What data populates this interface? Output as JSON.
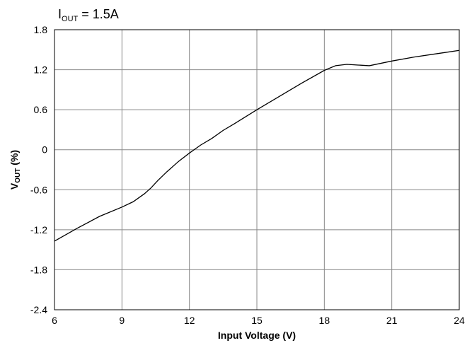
{
  "chart_data": {
    "type": "line",
    "annotation": {
      "main": "I",
      "sub": "OUT",
      "rest": " = 1.5A"
    },
    "xlabel": "Input Voltage (V)",
    "ylabel": {
      "main": "V",
      "sub": "OUT",
      "rest": " (%)"
    },
    "xlim": [
      6,
      24
    ],
    "ylim": [
      -2.4,
      1.8
    ],
    "x_ticks": [
      6,
      9,
      12,
      15,
      18,
      21,
      24
    ],
    "x_tick_labels": [
      "6",
      "9",
      "12",
      "15",
      "18",
      "21",
      "24"
    ],
    "y_ticks": [
      -2.4,
      -1.8,
      -1.2,
      -0.6,
      0,
      0.6,
      1.2,
      1.8
    ],
    "y_tick_labels": [
      "-2.4",
      "-1.8",
      "-1.2",
      "-0.6",
      "0",
      "0.6",
      "1.2",
      "1.8"
    ],
    "grid": true,
    "colors": {
      "line": "#000000",
      "grid": "#888888"
    },
    "series": [
      {
        "x": [
          6,
          7,
          8,
          9,
          9.5,
          10,
          10.3,
          10.6,
          11,
          11.5,
          12,
          12.5,
          13,
          13.5,
          14,
          15,
          16,
          17,
          18,
          18.5,
          19,
          19.5,
          20,
          21,
          22,
          23,
          24
        ],
        "y": [
          -1.37,
          -1.18,
          -1.0,
          -0.86,
          -0.78,
          -0.66,
          -0.57,
          -0.46,
          -0.33,
          -0.18,
          -0.05,
          0.07,
          0.17,
          0.29,
          0.39,
          0.6,
          0.8,
          1.0,
          1.19,
          1.26,
          1.28,
          1.27,
          1.26,
          1.33,
          1.39,
          1.44,
          1.49
        ]
      }
    ]
  }
}
